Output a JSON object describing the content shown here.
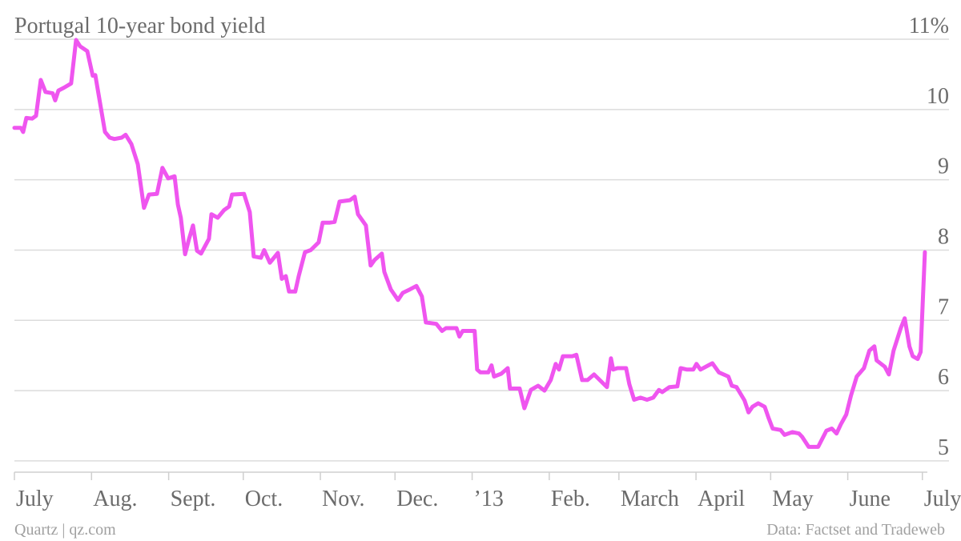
{
  "chart_data": {
    "type": "line",
    "title": "Portugal 10-year bond yield",
    "source": "Data: Factset and Tradeweb",
    "credit": "Quartz | qz.com",
    "color": "#ef55ef",
    "grid": true,
    "xlim": [
      0,
      367
    ],
    "xticks": [
      {
        "value": 0,
        "label": "July"
      },
      {
        "value": 31,
        "label": "Aug."
      },
      {
        "value": 62,
        "label": "Sept."
      },
      {
        "value": 92,
        "label": "Oct."
      },
      {
        "value": 123,
        "label": "Nov."
      },
      {
        "value": 153,
        "label": "Dec."
      },
      {
        "value": 184,
        "label": "’13"
      },
      {
        "value": 215,
        "label": "Feb."
      },
      {
        "value": 243,
        "label": "March"
      },
      {
        "value": 274,
        "label": "April"
      },
      {
        "value": 304,
        "label": "May"
      },
      {
        "value": 335,
        "label": "June"
      },
      {
        "value": 365,
        "label": "July"
      }
    ],
    "ylim": [
      4.8,
      11
    ],
    "yticks": [
      5,
      6,
      7,
      8,
      9,
      10,
      {
        "value": 11,
        "label": "11%"
      }
    ],
    "x": [
      0,
      2.6,
      3.5,
      4.8,
      7.1,
      8.7,
      10.6,
      12.5,
      15.4,
      16.4,
      17.7,
      19.9,
      22.8,
      24.8,
      26.4,
      29.3,
      31.5,
      32.5,
      36.4,
      38.3,
      40.2,
      43.1,
      44.7,
      47,
      49.6,
      52.1,
      54.1,
      57.3,
      59.5,
      61.8,
      64.4,
      65.7,
      66.9,
      68.6,
      70.2,
      71.8,
      73.4,
      75,
      78.2,
      79.2,
      81.7,
      84.3,
      86.3,
      87.5,
      92.3,
      94.6,
      96.2,
      99.1,
      100.4,
      102.7,
      105.9,
      107.5,
      109.1,
      110.4,
      112.9,
      114.3,
      116.8,
      119.1,
      122.3,
      123.9,
      126.8,
      128.7,
      130.7,
      134.9,
      136.8,
      138.1,
      141.3,
      143.2,
      144.8,
      147.7,
      148.7,
      151.3,
      154.2,
      156.1,
      159,
      161.6,
      163.8,
      165.4,
      169.6,
      171.9,
      173.5,
      177.7,
      178.9,
      180.2,
      185,
      186,
      187.3,
      190.5,
      191.8,
      192.8,
      195.7,
      198.3,
      199.2,
      203.1,
      205,
      207.6,
      210.5,
      213.1,
      215.6,
      217.6,
      218.9,
      220.5,
      224.3,
      225.9,
      228.2,
      230.4,
      233,
      235.3,
      238.2,
      239.8,
      240.7,
      242.4,
      245.9,
      247.2,
      249.1,
      251.7,
      254.3,
      256.8,
      259.1,
      260.4,
      263.3,
      266.5,
      267.8,
      270.4,
      272.9,
      274.2,
      275.8,
      279,
      280.6,
      283.2,
      287,
      288.4,
      290.3,
      293.5,
      295.1,
      296.7,
      299,
      301.6,
      303.2,
      304.8,
      308,
      309.6,
      312.8,
      315.4,
      316.7,
      319.3,
      323.1,
      326.4,
      328.6,
      330.5,
      332.2,
      334.4,
      336.3,
      338.6,
      341.5,
      343.7,
      345.7,
      346.6,
      349.9,
      351.5,
      353.4,
      356.3,
      357.9,
      359.8,
      361.1,
      363.1,
      364.3,
      366
    ],
    "values": [
      9.74,
      9.74,
      9.68,
      9.88,
      9.87,
      9.91,
      10.42,
      10.25,
      10.23,
      10.13,
      10.27,
      10.31,
      10.37,
      10.99,
      10.9,
      10.83,
      10.48,
      10.49,
      9.68,
      9.6,
      9.58,
      9.6,
      9.64,
      9.51,
      9.22,
      8.6,
      8.79,
      8.8,
      9.17,
      9.02,
      9.05,
      8.65,
      8.46,
      7.94,
      8.16,
      8.35,
      7.99,
      7.95,
      8.16,
      8.51,
      8.46,
      8.57,
      8.62,
      8.79,
      8.8,
      8.54,
      7.91,
      7.89,
      8.0,
      7.82,
      7.96,
      7.59,
      7.63,
      7.41,
      7.41,
      7.63,
      7.97,
      8.0,
      8.11,
      8.39,
      8.39,
      8.4,
      8.69,
      8.71,
      8.76,
      8.51,
      8.35,
      7.78,
      7.86,
      7.95,
      7.69,
      7.44,
      7.29,
      7.39,
      7.44,
      7.49,
      7.34,
      6.97,
      6.95,
      6.85,
      6.89,
      6.89,
      6.77,
      6.85,
      6.85,
      6.3,
      6.26,
      6.26,
      6.36,
      6.2,
      6.24,
      6.32,
      6.03,
      6.03,
      5.75,
      6.01,
      6.07,
      6.0,
      6.15,
      6.38,
      6.3,
      6.49,
      6.49,
      6.51,
      6.15,
      6.15,
      6.23,
      6.15,
      6.05,
      6.46,
      6.3,
      6.32,
      6.32,
      6.09,
      5.87,
      5.9,
      5.87,
      5.9,
      6.01,
      5.98,
      6.05,
      6.06,
      6.32,
      6.3,
      6.3,
      6.38,
      6.3,
      6.36,
      6.39,
      6.26,
      6.2,
      6.07,
      6.05,
      5.86,
      5.69,
      5.77,
      5.82,
      5.77,
      5.61,
      5.46,
      5.44,
      5.37,
      5.41,
      5.39,
      5.34,
      5.2,
      5.2,
      5.43,
      5.46,
      5.39,
      5.52,
      5.66,
      5.93,
      6.2,
      6.32,
      6.57,
      6.63,
      6.43,
      6.34,
      6.23,
      6.57,
      6.89,
      7.03,
      6.63,
      6.49,
      6.45,
      6.55,
      7.97
    ]
  }
}
